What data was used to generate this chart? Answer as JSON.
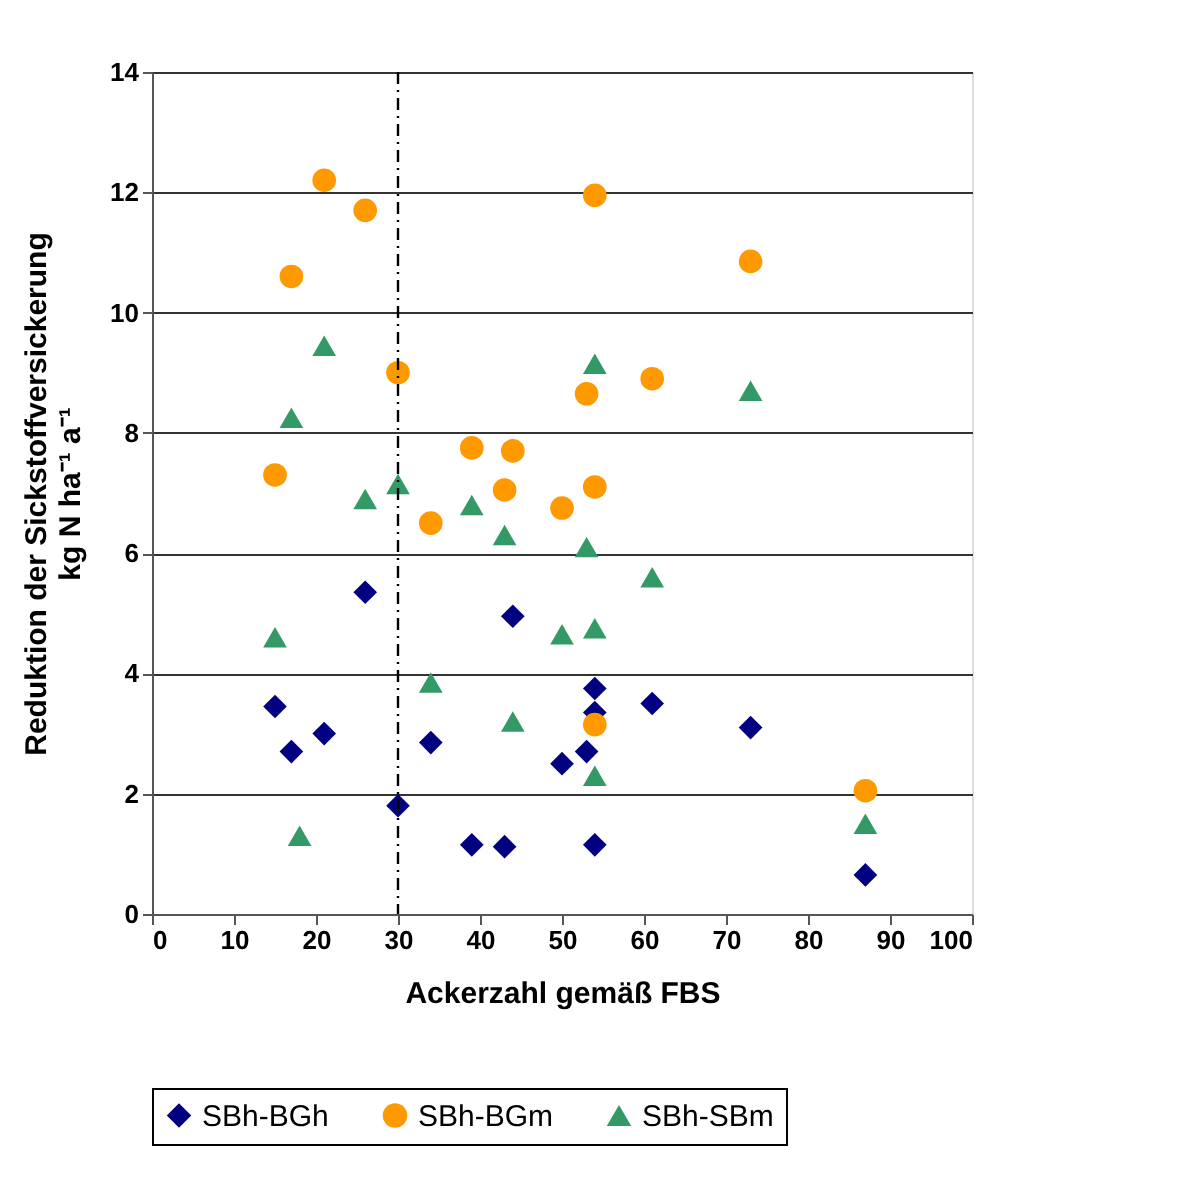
{
  "chart_data": {
    "type": "scatter",
    "xlabel": "Ackerzahl gemäß FBS",
    "ylabel": "Reduktion der Sickstoffversickerung\nkg N ha⁻¹ a⁻¹",
    "xlim": [
      0,
      100
    ],
    "xticks": [
      0,
      10,
      20,
      30,
      40,
      50,
      60,
      70,
      80,
      90,
      100
    ],
    "ylim": [
      0,
      14
    ],
    "yticks": [
      0,
      2,
      4,
      6,
      8,
      10,
      12,
      14
    ],
    "grid": "y",
    "legend": "bottom",
    "ref_lines": [
      {
        "axis": "x",
        "value": 30,
        "color": "#000000",
        "line_style": "dashdot"
      }
    ],
    "series": [
      {
        "name": "SBh-BGh",
        "color": "#000080",
        "marker": "diamond",
        "x": [
          15,
          17,
          21,
          26,
          30,
          34,
          39,
          43,
          44,
          50,
          53,
          54,
          54,
          54,
          61,
          73,
          87
        ],
        "values": [
          3.45,
          2.7,
          3.0,
          5.35,
          1.8,
          2.85,
          1.15,
          1.12,
          4.95,
          2.5,
          2.7,
          3.75,
          3.35,
          1.15,
          3.5,
          3.1,
          0.65
        ]
      },
      {
        "name": "SBh-BGm",
        "color": "#ff9900",
        "marker": "circle",
        "x": [
          15,
          17,
          21,
          26,
          30,
          34,
          39,
          43,
          44,
          50,
          53,
          54,
          54,
          54,
          61,
          73,
          87
        ],
        "values": [
          7.3,
          10.6,
          12.2,
          11.7,
          9.0,
          6.5,
          7.75,
          7.05,
          7.7,
          6.75,
          8.65,
          11.95,
          7.1,
          3.15,
          8.9,
          10.85,
          2.05
        ]
      },
      {
        "name": "SBh-SBm",
        "color": "#339966",
        "marker": "triangle",
        "x": [
          15,
          17,
          18,
          21,
          26,
          30,
          34,
          39,
          43,
          44,
          50,
          53,
          54,
          54,
          54,
          61,
          73,
          87
        ],
        "values": [
          4.6,
          8.25,
          1.3,
          9.45,
          6.9,
          7.15,
          3.85,
          6.8,
          6.3,
          3.2,
          4.65,
          6.1,
          9.15,
          4.75,
          2.3,
          5.6,
          8.7,
          1.5
        ]
      }
    ]
  }
}
